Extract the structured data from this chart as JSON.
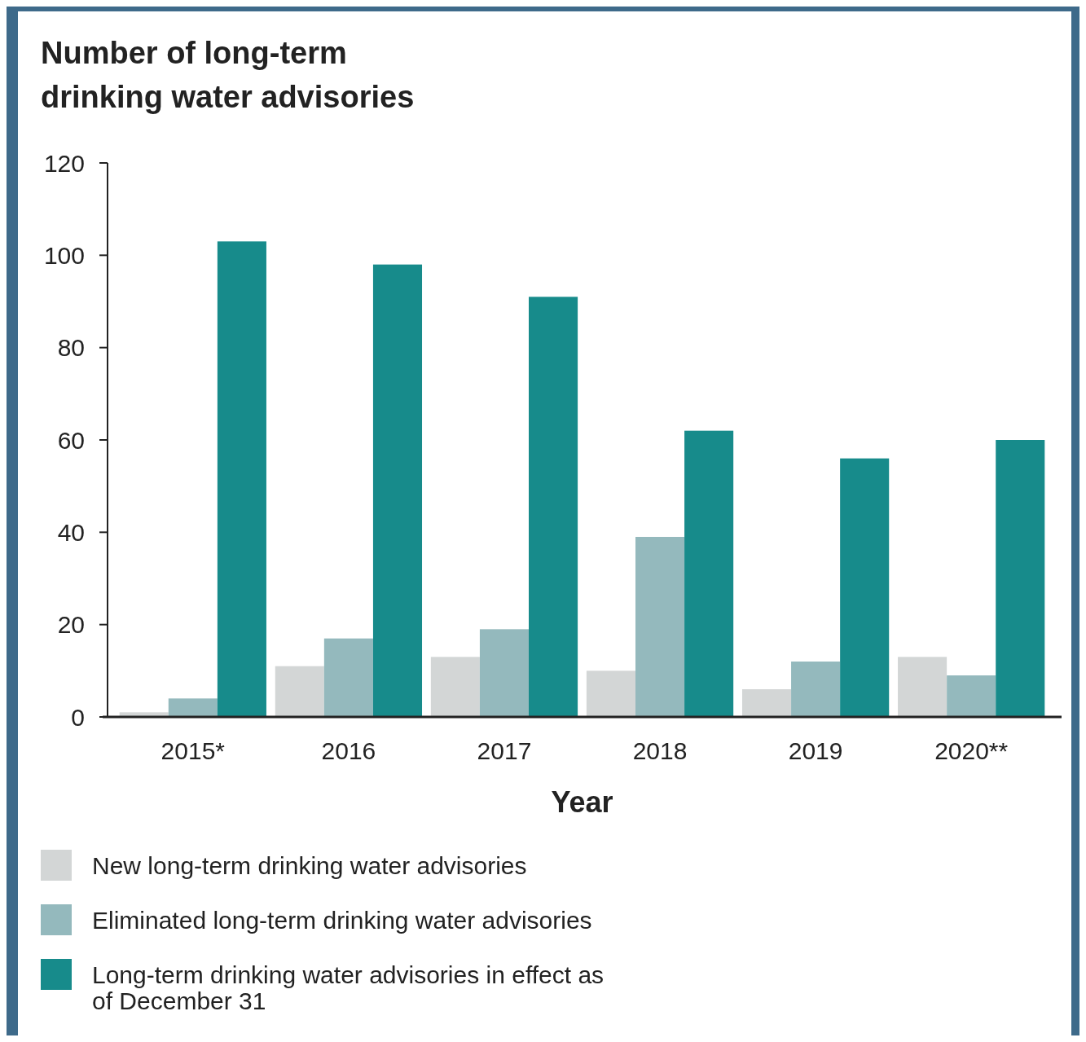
{
  "chart_data": {
    "type": "bar",
    "title": "Number of long-term drinking water advisories",
    "xlabel": "Year",
    "categories": [
      "2015*",
      "2016",
      "2017",
      "2018",
      "2019",
      "2020**"
    ],
    "series": [
      {
        "name": "New long-term drinking water advisories",
        "color": "#d3d6d6",
        "values": [
          1,
          11,
          13,
          10,
          6,
          13
        ]
      },
      {
        "name": "Eliminated long-term drinking water advisories",
        "color": "#94b9bd",
        "values": [
          4,
          17,
          19,
          39,
          12,
          9
        ]
      },
      {
        "name": "Long-term drinking water advisories in effect as of December 31",
        "color": "#178b8b",
        "values": [
          103,
          98,
          91,
          62,
          56,
          60
        ]
      }
    ],
    "ylim": [
      0,
      120
    ],
    "yticks": [
      0,
      20,
      40,
      60,
      80,
      100,
      120
    ],
    "grid": false,
    "legend": "bottom"
  }
}
